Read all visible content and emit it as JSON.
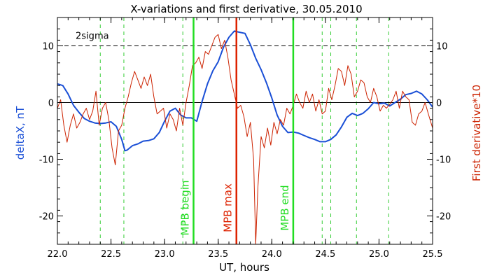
{
  "chart_data": {
    "type": "line",
    "title": "X-variations and first derivative, 30.05.2010",
    "xlabel": "UT, hours",
    "ylabel_left": "deltaX, nT",
    "ylabel_right": "First derivative*10",
    "xlim": [
      22.0,
      25.5
    ],
    "ylim": [
      -25,
      15
    ],
    "x_ticks": [
      "22.0",
      "22.5",
      "23.0",
      "23.5",
      "24.0",
      "24.5",
      "25.0",
      "25.5"
    ],
    "y_ticks_left": [
      "-20",
      "-10",
      "0",
      "10"
    ],
    "y_ticks_right": [
      "-20",
      "-10",
      "0",
      "10"
    ],
    "threshold": {
      "label": "2sigma",
      "y": 10
    },
    "colors": {
      "deltaX": "#1a4fd6",
      "derivative": "#cc2200",
      "mpb_edge": "#22dd22",
      "mpb_max": "#dd2200",
      "dashed": "#33cc33"
    },
    "series": [
      {
        "key": "deltaX",
        "x": [
          22.0,
          22.05,
          22.1,
          22.15,
          22.2,
          22.25,
          22.3,
          22.35,
          22.4,
          22.45,
          22.5,
          22.55,
          22.6,
          22.63,
          22.65,
          22.7,
          22.75,
          22.8,
          22.85,
          22.9,
          22.95,
          23.0,
          23.05,
          23.1,
          23.15,
          23.2,
          23.25,
          23.3,
          23.35,
          23.4,
          23.45,
          23.5,
          23.55,
          23.6,
          23.65,
          23.7,
          23.75,
          23.8,
          23.85,
          23.9,
          23.95,
          24.0,
          24.05,
          24.1,
          24.15,
          24.2,
          24.25,
          24.3,
          24.35,
          24.4,
          24.45,
          24.5,
          24.55,
          24.6,
          24.65,
          24.7,
          24.75,
          24.8,
          24.85,
          24.9,
          24.95,
          25.0,
          25.05,
          25.1,
          25.15,
          25.2,
          25.25,
          25.3,
          25.35,
          25.4,
          25.45,
          25.5
        ],
        "y": [
          3.3,
          3.0,
          1.5,
          -0.5,
          -1.7,
          -2.8,
          -3.3,
          -3.6,
          -3.7,
          -3.6,
          -3.4,
          -4.2,
          -6.5,
          -8.5,
          -8.4,
          -7.6,
          -7.3,
          -6.8,
          -6.7,
          -6.4,
          -5.3,
          -3.3,
          -1.5,
          -1.0,
          -2.2,
          -2.7,
          -2.7,
          -3.3,
          0.2,
          3.3,
          5.6,
          7.2,
          9.8,
          11.5,
          12.6,
          12.4,
          12.2,
          10.2,
          7.8,
          5.8,
          3.5,
          0.8,
          -2.2,
          -4.2,
          -5.3,
          -5.2,
          -5.4,
          -5.8,
          -6.2,
          -6.5,
          -6.9,
          -6.9,
          -6.5,
          -5.7,
          -4.3,
          -2.6,
          -1.9,
          -2.3,
          -1.9,
          -1.1,
          0.0,
          -0.2,
          -0.1,
          -0.6,
          0.0,
          0.6,
          1.4,
          1.6,
          2.0,
          1.5,
          0.5,
          -0.8
        ]
      },
      {
        "key": "derivative",
        "x": [
          22.0,
          22.03,
          22.06,
          22.09,
          22.12,
          22.15,
          22.18,
          22.21,
          22.24,
          22.27,
          22.3,
          22.33,
          22.36,
          22.39,
          22.42,
          22.45,
          22.48,
          22.51,
          22.54,
          22.57,
          22.6,
          22.63,
          22.66,
          22.69,
          22.72,
          22.75,
          22.78,
          22.81,
          22.84,
          22.87,
          22.9,
          22.93,
          22.96,
          22.99,
          23.02,
          23.05,
          23.08,
          23.11,
          23.14,
          23.17,
          23.2,
          23.23,
          23.26,
          23.29,
          23.32,
          23.35,
          23.38,
          23.41,
          23.44,
          23.47,
          23.5,
          23.53,
          23.56,
          23.59,
          23.62,
          23.65,
          23.68,
          23.71,
          23.74,
          23.77,
          23.8,
          23.83,
          23.85,
          23.87,
          23.9,
          23.93,
          23.96,
          23.99,
          24.02,
          24.05,
          24.08,
          24.11,
          24.14,
          24.17,
          24.2,
          24.23,
          24.26,
          24.29,
          24.32,
          24.35,
          24.38,
          24.41,
          24.44,
          24.47,
          24.5,
          24.53,
          24.56,
          24.59,
          24.62,
          24.65,
          24.68,
          24.71,
          24.74,
          24.77,
          24.8,
          24.83,
          24.86,
          24.89,
          24.92,
          24.95,
          24.98,
          25.01,
          25.04,
          25.07,
          25.1,
          25.13,
          25.16,
          25.19,
          25.22,
          25.25,
          25.28,
          25.31,
          25.34,
          25.37,
          25.4,
          25.43,
          25.46,
          25.5
        ],
        "y": [
          -1.0,
          0.5,
          -4.0,
          -7.0,
          -4.0,
          -2.0,
          -4.5,
          -3.5,
          -2.0,
          -1.0,
          -3.0,
          -1.5,
          2.0,
          -4.0,
          -1.0,
          0.0,
          -3.0,
          -8.0,
          -11.0,
          -5.0,
          -4.0,
          -1.0,
          1.0,
          3.5,
          5.5,
          4.0,
          2.5,
          4.5,
          3.0,
          5.0,
          1.0,
          -2.0,
          -1.5,
          -1.0,
          -4.5,
          -2.0,
          -3.0,
          -5.0,
          -1.0,
          -4.0,
          0.0,
          3.0,
          6.5,
          7.0,
          8.0,
          6.0,
          9.0,
          8.5,
          10.0,
          11.5,
          12.0,
          9.5,
          11.0,
          8.0,
          4.0,
          1.5,
          -1.0,
          -0.5,
          -2.5,
          -6.0,
          -3.5,
          -10.0,
          -25.0,
          -15.0,
          -6.0,
          -8.0,
          -4.5,
          -7.5,
          -3.5,
          -5.5,
          -3.0,
          -4.0,
          -1.0,
          -2.0,
          -0.5,
          1.5,
          0.0,
          -1.0,
          2.0,
          0.0,
          1.5,
          -1.5,
          0.5,
          -2.0,
          -1.5,
          2.5,
          0.5,
          3.0,
          6.0,
          5.5,
          3.0,
          6.5,
          5.0,
          1.0,
          2.0,
          4.0,
          3.5,
          1.0,
          0.0,
          2.5,
          1.0,
          -1.5,
          -0.5,
          -1.0,
          -0.3,
          0.5,
          2.0,
          -1.0,
          2.0,
          1.0,
          0.5,
          -3.5,
          -4.0,
          -2.0,
          -1.5,
          0.0,
          -2.0,
          -4.5
        ]
      }
    ],
    "dashed_lines_x": [
      22.4,
      22.62,
      23.17,
      24.47,
      24.55,
      24.79,
      25.09
    ],
    "vertical_markers": [
      {
        "label": "MPB begin",
        "x": 23.27,
        "kind": "mpb_edge"
      },
      {
        "label": "MPB max",
        "x": 23.67,
        "kind": "mpb_max"
      },
      {
        "label": "MPB end",
        "x": 24.2,
        "kind": "mpb_edge"
      }
    ]
  }
}
